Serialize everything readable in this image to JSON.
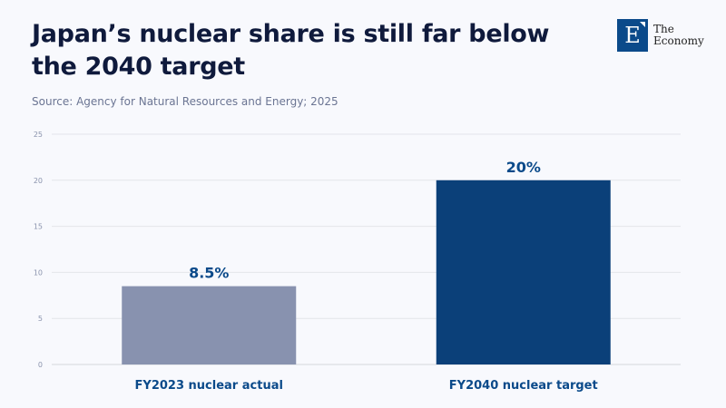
{
  "header": {
    "title": "Japan’s nuclear share is still far below the 2040 target",
    "source": "Source: Agency for Natural Resources and Energy; 2025"
  },
  "logo": {
    "mark": "E",
    "line1": "The",
    "line2": "Economy"
  },
  "chart_data": {
    "type": "bar",
    "title": "Japan’s nuclear share is still far below the 2040 target",
    "categories": [
      "FY2023 nuclear actual",
      "FY2040 nuclear target"
    ],
    "values": [
      8.5,
      20
    ],
    "data_labels": [
      "8.5%",
      "20%"
    ],
    "colors": [
      "#8892af",
      "#0b4079"
    ],
    "ylim": [
      0,
      25
    ],
    "yticks": [
      0,
      5,
      10,
      15,
      20,
      25
    ],
    "grid": true,
    "xlabel": "",
    "ylabel": ""
  }
}
